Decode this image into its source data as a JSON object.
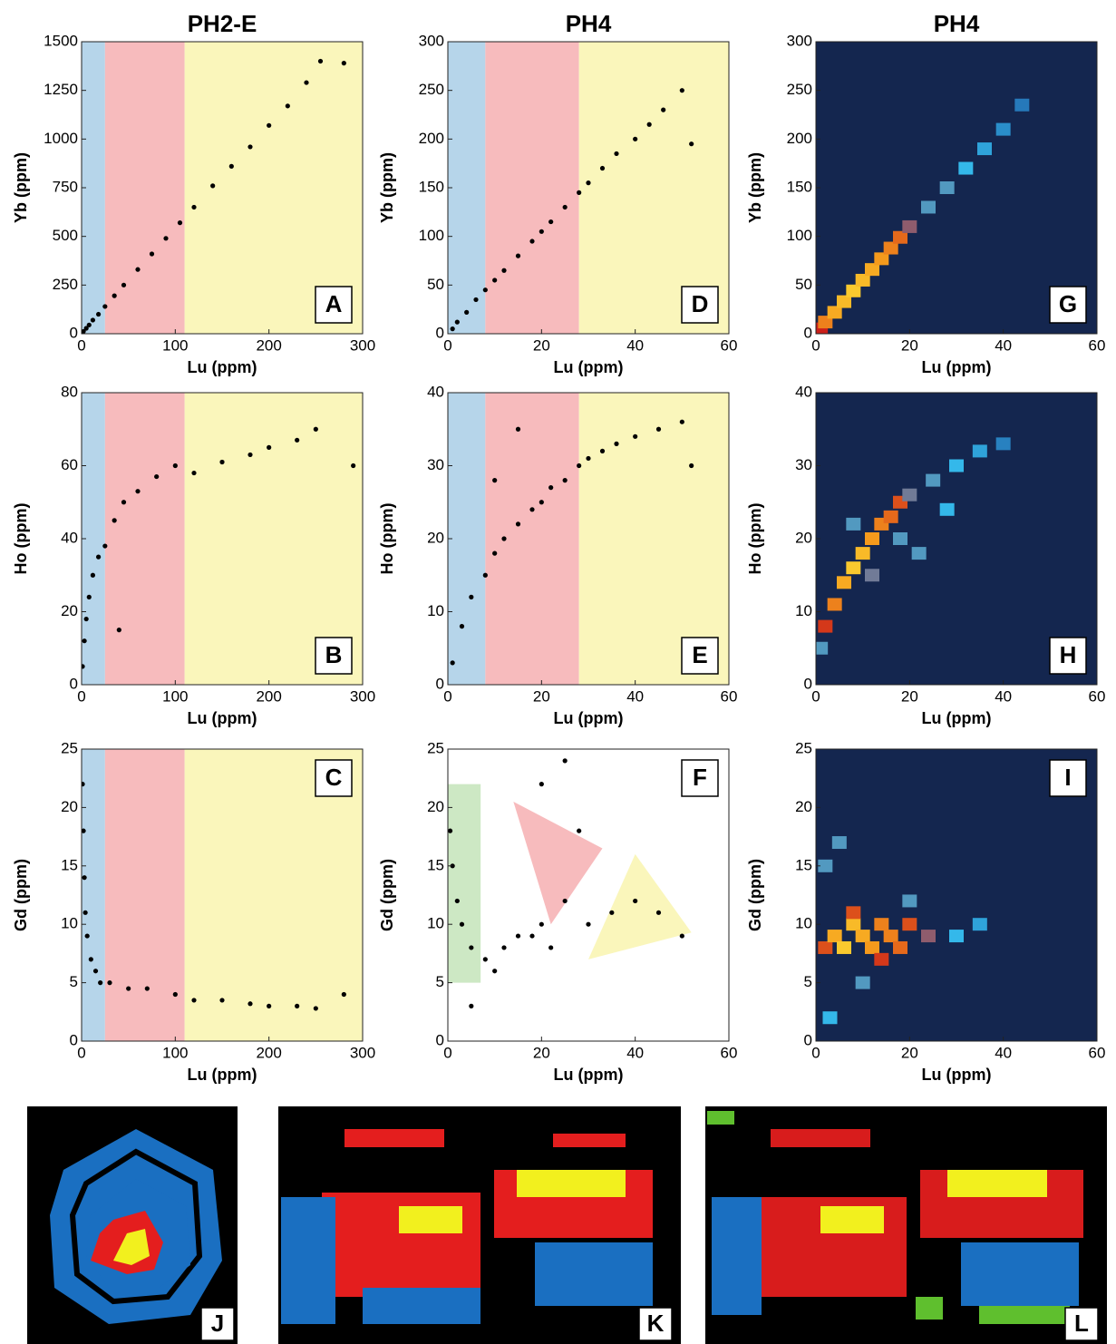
{
  "chart_data": [
    {
      "type": "scatter",
      "title": "PH2-E",
      "panel": "A",
      "xlabel": "Lu (ppm)",
      "ylabel": "Yb (ppm)",
      "xlim": [
        0,
        300
      ],
      "ylim": [
        0,
        1500
      ],
      "xticks": [
        0,
        100,
        200,
        300
      ],
      "yticks": [
        0,
        250,
        500,
        750,
        1000,
        1250,
        1500
      ],
      "regions": [
        {
          "x": [
            0,
            25
          ],
          "color": "#b6d5ea"
        },
        {
          "x": [
            25,
            110
          ],
          "color": "#f7bbbd"
        },
        {
          "x": [
            110,
            300
          ],
          "color": "#faf6bb"
        }
      ],
      "x": [
        2,
        5,
        8,
        12,
        18,
        25,
        35,
        45,
        60,
        75,
        90,
        105,
        120,
        140,
        160,
        180,
        200,
        220,
        240,
        255,
        280
      ],
      "y": [
        12,
        28,
        45,
        70,
        100,
        140,
        195,
        250,
        330,
        410,
        490,
        570,
        650,
        760,
        860,
        960,
        1070,
        1170,
        1290,
        1400,
        1390
      ]
    },
    {
      "type": "scatter",
      "panel": "B",
      "xlabel": "Lu (ppm)",
      "ylabel": "Ho (ppm)",
      "xlim": [
        0,
        300
      ],
      "ylim": [
        0,
        80
      ],
      "xticks": [
        0,
        100,
        200,
        300
      ],
      "yticks": [
        0,
        20,
        40,
        60,
        80
      ],
      "regions": [
        {
          "x": [
            0,
            25
          ],
          "color": "#b6d5ea"
        },
        {
          "x": [
            25,
            110
          ],
          "color": "#f7bbbd"
        },
        {
          "x": [
            110,
            300
          ],
          "color": "#faf6bb"
        }
      ],
      "x": [
        1,
        3,
        5,
        8,
        12,
        18,
        25,
        35,
        45,
        60,
        80,
        100,
        120,
        150,
        180,
        200,
        230,
        250,
        290,
        40
      ],
      "y": [
        5,
        12,
        18,
        24,
        30,
        35,
        38,
        45,
        50,
        53,
        57,
        60,
        58,
        61,
        63,
        65,
        67,
        70,
        60,
        15
      ]
    },
    {
      "type": "scatter",
      "panel": "C",
      "xlabel": "Lu (ppm)",
      "ylabel": "Gd (ppm)",
      "xlim": [
        0,
        300
      ],
      "ylim": [
        0,
        25
      ],
      "xticks": [
        0,
        100,
        200,
        300
      ],
      "yticks": [
        0,
        5,
        10,
        15,
        20,
        25
      ],
      "regions": [
        {
          "x": [
            0,
            25
          ],
          "color": "#b6d5ea"
        },
        {
          "x": [
            25,
            110
          ],
          "color": "#f7bbbd"
        },
        {
          "x": [
            110,
            300
          ],
          "color": "#faf6bb"
        }
      ],
      "x": [
        1,
        2,
        3,
        4,
        6,
        10,
        15,
        20,
        30,
        50,
        70,
        100,
        120,
        150,
        180,
        200,
        230,
        250,
        280
      ],
      "y": [
        22,
        18,
        14,
        11,
        9,
        7,
        6,
        5,
        5,
        4.5,
        4.5,
        4,
        3.5,
        3.5,
        3.2,
        3,
        3,
        2.8,
        4
      ]
    },
    {
      "type": "scatter",
      "title": "PH4",
      "panel": "D",
      "xlabel": "Lu (ppm)",
      "ylabel": "Yb (ppm)",
      "xlim": [
        0,
        60
      ],
      "ylim": [
        0,
        300
      ],
      "xticks": [
        0,
        20,
        40,
        60
      ],
      "yticks": [
        0,
        50,
        100,
        150,
        200,
        250,
        300
      ],
      "regions": [
        {
          "x": [
            0,
            8
          ],
          "color": "#b6d5ea"
        },
        {
          "x": [
            8,
            28
          ],
          "color": "#f7bbbd"
        },
        {
          "x": [
            28,
            60
          ],
          "color": "#faf6bb"
        }
      ],
      "x": [
        1,
        2,
        4,
        6,
        8,
        10,
        12,
        15,
        18,
        20,
        22,
        25,
        28,
        30,
        33,
        36,
        40,
        43,
        46,
        50,
        52
      ],
      "y": [
        5,
        12,
        22,
        35,
        45,
        55,
        65,
        80,
        95,
        105,
        115,
        130,
        145,
        155,
        170,
        185,
        200,
        215,
        230,
        250,
        195
      ]
    },
    {
      "type": "scatter",
      "panel": "E",
      "xlabel": "Lu (ppm)",
      "ylabel": "Ho (ppm)",
      "xlim": [
        0,
        60
      ],
      "ylim": [
        0,
        40
      ],
      "xticks": [
        0,
        20,
        40,
        60
      ],
      "yticks": [
        0,
        10,
        20,
        30,
        40
      ],
      "regions": [
        {
          "x": [
            0,
            8
          ],
          "color": "#b6d5ea"
        },
        {
          "x": [
            8,
            28
          ],
          "color": "#f7bbbd"
        },
        {
          "x": [
            28,
            60
          ],
          "color": "#faf6bb"
        }
      ],
      "x": [
        1,
        3,
        5,
        8,
        10,
        12,
        15,
        18,
        20,
        22,
        25,
        28,
        30,
        33,
        36,
        40,
        45,
        50,
        52,
        15,
        10
      ],
      "y": [
        3,
        8,
        12,
        15,
        18,
        20,
        22,
        24,
        25,
        27,
        28,
        30,
        31,
        32,
        33,
        34,
        35,
        36,
        30,
        35,
        28
      ]
    },
    {
      "type": "scatter",
      "panel": "F",
      "xlabel": "Lu (ppm)",
      "ylabel": "Gd (ppm)",
      "xlim": [
        0,
        60
      ],
      "ylim": [
        0,
        25
      ],
      "xticks": [
        0,
        20,
        40,
        60
      ],
      "yticks": [
        0,
        5,
        10,
        15,
        20,
        25
      ],
      "polygons": [
        {
          "points": [
            [
              0,
              22
            ],
            [
              7,
              22
            ],
            [
              7,
              5
            ],
            [
              0,
              5
            ]
          ],
          "color": "#cde8c4"
        },
        {
          "points": [
            [
              14,
              20.5
            ],
            [
              33,
              16.5
            ],
            [
              22,
              10
            ]
          ],
          "color": "#f7bbbd"
        },
        {
          "points": [
            [
              40,
              16
            ],
            [
              52,
              9.3
            ],
            [
              30,
              7
            ]
          ],
          "color": "#faf6bb"
        }
      ],
      "x": [
        0.5,
        1,
        2,
        3,
        5,
        8,
        10,
        12,
        15,
        18,
        20,
        22,
        25,
        28,
        30,
        35,
        40,
        45,
        50,
        20,
        25,
        5
      ],
      "y": [
        18,
        15,
        12,
        10,
        8,
        7,
        6,
        8,
        9,
        9,
        10,
        8,
        12,
        18,
        10,
        11,
        12,
        11,
        9,
        22,
        24,
        3
      ]
    },
    {
      "type": "heatmap",
      "title": "PH4",
      "panel": "G",
      "xlabel": "Lu (ppm)",
      "ylabel": "Yb (ppm)",
      "xlim": [
        0,
        60
      ],
      "ylim": [
        0,
        300
      ],
      "xticks": [
        0,
        20,
        40,
        60
      ],
      "yticks": [
        0,
        50,
        100,
        150,
        200,
        250,
        300
      ],
      "background": "#14264f",
      "colormap": [
        "#1c4f9a",
        "#34b8ea",
        "#cc1f1a",
        "#f59a1c",
        "#fde93a"
      ],
      "x": [
        1,
        2,
        4,
        6,
        8,
        10,
        12,
        14,
        16,
        18,
        20,
        24,
        28,
        32,
        36,
        40,
        44
      ],
      "y": [
        5,
        12,
        22,
        33,
        44,
        55,
        66,
        77,
        88,
        99,
        110,
        130,
        150,
        170,
        190,
        210,
        235
      ],
      "values": [
        0.5,
        0.7,
        0.8,
        0.85,
        0.9,
        0.85,
        0.8,
        0.75,
        0.7,
        0.65,
        0.4,
        0.3,
        0.3,
        0.25,
        0.2,
        0.15,
        0.1
      ]
    },
    {
      "type": "heatmap",
      "panel": "H",
      "xlabel": "Lu (ppm)",
      "ylabel": "Ho (ppm)",
      "xlim": [
        0,
        60
      ],
      "ylim": [
        0,
        40
      ],
      "xticks": [
        0,
        20,
        40,
        60
      ],
      "yticks": [
        0,
        10,
        20,
        30,
        40
      ],
      "background": "#14264f",
      "colormap": [
        "#1c4f9a",
        "#34b8ea",
        "#cc1f1a",
        "#f59a1c",
        "#fde93a"
      ],
      "x": [
        1,
        2,
        4,
        6,
        8,
        10,
        12,
        14,
        16,
        18,
        20,
        25,
        30,
        35,
        40,
        8,
        12,
        18,
        22,
        28
      ],
      "y": [
        5,
        8,
        11,
        14,
        16,
        18,
        20,
        22,
        23,
        25,
        26,
        28,
        30,
        32,
        33,
        22,
        15,
        20,
        18,
        24
      ],
      "values": [
        0.3,
        0.55,
        0.7,
        0.8,
        0.9,
        0.85,
        0.75,
        0.7,
        0.65,
        0.6,
        0.35,
        0.3,
        0.25,
        0.2,
        0.12,
        0.3,
        0.35,
        0.3,
        0.3,
        0.25
      ]
    },
    {
      "type": "heatmap",
      "panel": "I",
      "xlabel": "Lu (ppm)",
      "ylabel": "Gd (ppm)",
      "xlim": [
        0,
        60
      ],
      "ylim": [
        0,
        25
      ],
      "xticks": [
        0,
        20,
        40,
        60
      ],
      "yticks": [
        0,
        5,
        10,
        15,
        20,
        25
      ],
      "background": "#14264f",
      "colormap": [
        "#1c4f9a",
        "#34b8ea",
        "#cc1f1a",
        "#f59a1c",
        "#fde93a"
      ],
      "x": [
        2,
        4,
        6,
        8,
        10,
        12,
        14,
        16,
        18,
        20,
        24,
        2,
        5,
        10,
        20,
        30,
        35,
        8,
        14,
        3
      ],
      "y": [
        8,
        9,
        8,
        10,
        9,
        8,
        10,
        9,
        8,
        10,
        9,
        15,
        17,
        5,
        12,
        9,
        10,
        11,
        7,
        2
      ],
      "values": [
        0.6,
        0.8,
        0.9,
        0.85,
        0.8,
        0.75,
        0.7,
        0.7,
        0.65,
        0.6,
        0.4,
        0.3,
        0.3,
        0.3,
        0.3,
        0.25,
        0.2,
        0.6,
        0.55,
        0.25
      ]
    }
  ],
  "image_panels": [
    {
      "label": "J"
    },
    {
      "label": "K"
    },
    {
      "label": "L"
    }
  ]
}
